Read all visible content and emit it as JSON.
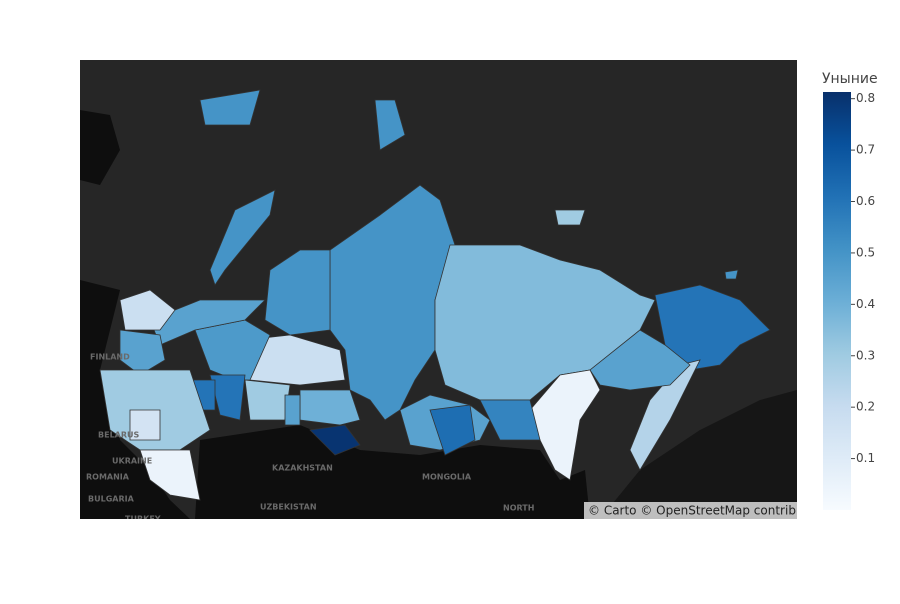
{
  "chart_data": {
    "type": "choropleth",
    "colorbar": {
      "title": "Уныние",
      "range": [
        0,
        0.813
      ],
      "ticks": [
        0.1,
        0.2,
        0.3,
        0.4,
        0.5,
        0.6,
        0.7,
        0.8
      ]
    },
    "colorscale": [
      "#f7fbff",
      "#deebf7",
      "#c6dbef",
      "#9ecae1",
      "#6baed6",
      "#4292c6",
      "#2171b5",
      "#08519c",
      "#08306b"
    ],
    "values": [
      0.5,
      0.36,
      0.6,
      0.25,
      0.45,
      0.05,
      0.55,
      0.45,
      0.62,
      0.8,
      0.4,
      0.18,
      0.5,
      0.48,
      0.45,
      0.18,
      0.45,
      0.6,
      0.6,
      0.3,
      0.05,
      0.15,
      0.3,
      0.45,
      0.5,
      0.5,
      0.5,
      0.3,
      0.5
    ],
    "map_labels": [
      "FINLAND",
      "BELARUS",
      "UKRAINE",
      "ROMANIA",
      "BULGARIA",
      "TURKEY",
      "KAZAKHSTAN",
      "MONGOLIA",
      "UZBEKISTAN",
      "NORTH"
    ],
    "attribution": "© Carto © OpenStreetMap contributors"
  }
}
